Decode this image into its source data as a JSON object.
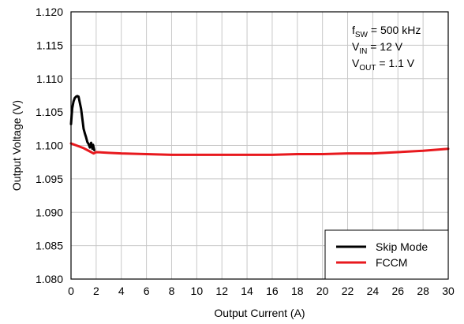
{
  "chart_data": {
    "type": "line",
    "xlabel": "Output Current (A)",
    "ylabel": "Output Voltage (V)",
    "xlim": [
      0,
      30
    ],
    "ylim": [
      1.08,
      1.12
    ],
    "x_ticks": [
      0,
      2,
      4,
      6,
      8,
      10,
      12,
      14,
      16,
      18,
      20,
      22,
      24,
      26,
      28,
      30
    ],
    "y_ticks": [
      "1.080",
      "1.085",
      "1.090",
      "1.095",
      "1.100",
      "1.105",
      "1.110",
      "1.115",
      "1.120"
    ],
    "grid": true,
    "legend_position": "bottom-right",
    "annotation": [
      {
        "base": "f",
        "sub": "SW",
        "rest": " = 500 kHz"
      },
      {
        "base": "V",
        "sub": "IN",
        "rest": " = 12 V"
      },
      {
        "base": "V",
        "sub": "OUT",
        "rest": " = 1.1 V"
      }
    ],
    "series": [
      {
        "name": "Skip Mode",
        "color": "#000000",
        "x": [
          0.0,
          0.05,
          0.1,
          0.2,
          0.3,
          0.4,
          0.5,
          0.6,
          0.7,
          0.8,
          0.9,
          1.0,
          1.1,
          1.2,
          1.3,
          1.4,
          1.5,
          1.55,
          1.6,
          1.65,
          1.7,
          1.75,
          1.8,
          1.85
        ],
        "values": [
          1.1032,
          1.1045,
          1.1056,
          1.1066,
          1.1071,
          1.1073,
          1.1074,
          1.1073,
          1.1064,
          1.1055,
          1.104,
          1.1025,
          1.1018,
          1.1012,
          1.1005,
          1.1002,
          1.0997,
          1.1001,
          1.1004,
          1.0999,
          1.0995,
          1.1001,
          1.0997,
          1.0993
        ]
      },
      {
        "name": "FCCM",
        "color": "#e8191e",
        "x": [
          0.0,
          1.0,
          1.5,
          1.8,
          2.0,
          3.0,
          4.0,
          6.0,
          8.0,
          10.0,
          12.0,
          14.0,
          16.0,
          18.0,
          20.0,
          22.0,
          24.0,
          26.0,
          28.0,
          30.0
        ],
        "values": [
          1.1003,
          1.0996,
          1.0991,
          1.0988,
          1.099,
          1.0989,
          1.0988,
          1.0987,
          1.0986,
          1.0986,
          1.0986,
          1.0986,
          1.0986,
          1.0987,
          1.0987,
          1.0988,
          1.0988,
          1.099,
          1.0992,
          1.0995
        ]
      }
    ]
  }
}
